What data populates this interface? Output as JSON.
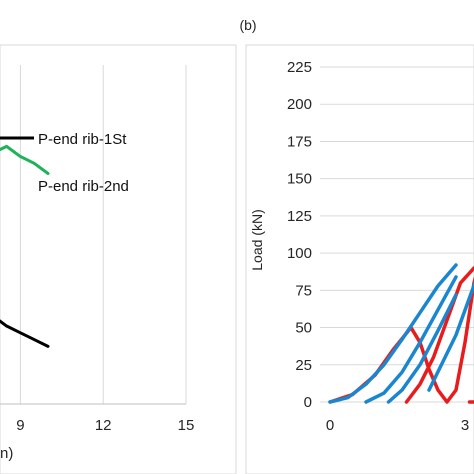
{
  "chart_data": [
    {
      "type": "line",
      "panel": "",
      "title": "",
      "xlabel": "",
      "ylabel": "",
      "xlim": [
        0,
        15
      ],
      "x_ticks": [
        "9",
        "12",
        "15"
      ],
      "xlabel_fragment": "n)",
      "grid": true,
      "legend": "inline-right",
      "series": [
        {
          "name": "P-end rib-1St",
          "color": "#000000",
          "x": [
            6.5,
            7.0,
            7.5,
            8.0,
            8.5,
            9.0,
            9.5,
            10.0
          ],
          "y": [
            0.32,
            0.3,
            0.28,
            0.26,
            0.23,
            0.21,
            0.19,
            0.17
          ]
        },
        {
          "name": "P-end rib-2nd",
          "color": "#1fb25a",
          "x": [
            6.5,
            7.0,
            7.5,
            8.0,
            8.5,
            9.0,
            9.5,
            10.0
          ],
          "y": [
            0.78,
            0.76,
            0.74,
            0.74,
            0.76,
            0.73,
            0.71,
            0.68
          ]
        }
      ]
    },
    {
      "type": "line",
      "panel": "(b)",
      "title": "",
      "xlabel": "",
      "ylabel": "Load (kN)",
      "ylim": [
        0,
        225
      ],
      "y_ticks": [
        0,
        25,
        50,
        75,
        100,
        125,
        150,
        175,
        200,
        225
      ],
      "xlim": [
        0,
        5
      ],
      "x_ticks": [
        0,
        3
      ],
      "grid": true,
      "series": [
        {
          "name": "",
          "color": "#e81c1c",
          "x": [
            0,
            0.5,
            1.0,
            1.4,
            1.8,
            2.0,
            2.2,
            2.4,
            2.6,
            2.8,
            3.0,
            3.2,
            3.6,
            4.0,
            4.4,
            4.7,
            5.0
          ],
          "y": [
            0,
            5,
            18,
            35,
            50,
            40,
            22,
            8,
            0,
            8,
            40,
            80,
            125,
            145,
            147,
            148,
            148
          ]
        },
        {
          "name": "",
          "color": "#e81c1c",
          "x": [
            1.7,
            2.0,
            2.3,
            2.6,
            2.9,
            3.2
          ],
          "y": [
            0,
            12,
            30,
            55,
            80,
            90
          ]
        },
        {
          "name": "",
          "color": "#e81c1c",
          "x": [
            3.1,
            5.0
          ],
          "y": [
            0,
            0
          ]
        },
        {
          "name": "",
          "color": "#1a86d0",
          "x": [
            0,
            0.4,
            0.8,
            1.2,
            1.6,
            2.0,
            2.4,
            2.8
          ],
          "y": [
            0,
            3,
            12,
            25,
            42,
            60,
            78,
            92
          ]
        },
        {
          "name": "",
          "color": "#1a86d0",
          "x": [
            0.8,
            1.2,
            1.6,
            2.0,
            2.4,
            2.8
          ],
          "y": [
            0,
            6,
            20,
            40,
            62,
            84
          ]
        },
        {
          "name": "",
          "color": "#1a86d0",
          "x": [
            1.3,
            1.6,
            2.0,
            2.4,
            2.8
          ],
          "y": [
            0,
            8,
            25,
            48,
            72
          ]
        },
        {
          "name": "",
          "color": "#1a86d0",
          "x": [
            2.2,
            2.8,
            3.4,
            4.0,
            4.6,
            5.0
          ],
          "y": [
            8,
            45,
            95,
            150,
            180,
            186
          ]
        },
        {
          "name": "",
          "color": "#1a86d0",
          "x": [
            4.3,
            4.6,
            5.0
          ],
          "y": [
            0,
            25,
            55
          ]
        }
      ]
    }
  ]
}
